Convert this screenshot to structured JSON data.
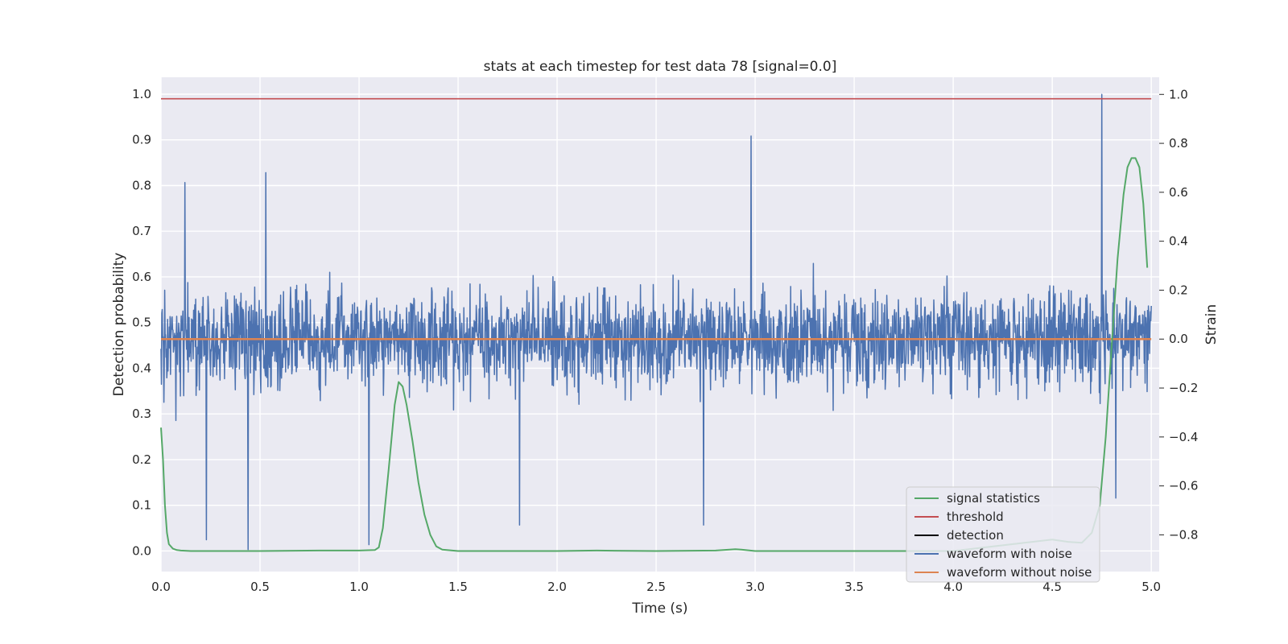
{
  "chart_data": {
    "type": "line",
    "title": "stats at each timestep for test data 78 [signal=0.0]",
    "xlabel": "Time (s)",
    "ylabel_left": "Detection probability",
    "ylabel_right": "Strain",
    "xlim": [
      0.0,
      5.04
    ],
    "ylim_left": [
      -0.045,
      1.037
    ],
    "ylim_right": [
      -0.95,
      1.07
    ],
    "xticks": [
      "0.0",
      "0.5",
      "1.0",
      "1.5",
      "2.0",
      "2.5",
      "3.0",
      "3.5",
      "4.0",
      "4.5",
      "5.0"
    ],
    "yticks_left": [
      "0.0",
      "0.1",
      "0.2",
      "0.3",
      "0.4",
      "0.5",
      "0.6",
      "0.7",
      "0.8",
      "0.9",
      "1.0"
    ],
    "yticks_right": [
      "−0.8",
      "−0.6",
      "−0.4",
      "−0.2",
      "0.0",
      "0.2",
      "0.4",
      "0.6",
      "0.8",
      "1.0"
    ],
    "grid": true,
    "legend_position": "lower-right",
    "colors": {
      "background": "#eaeaf2",
      "grid": "#ffffff",
      "signal_statistics": "#55a868",
      "threshold": "#c44e52",
      "detection": "#000000",
      "waveform_with_noise": "#4c72b0",
      "waveform_without_noise": "#dd8452"
    },
    "series": [
      {
        "name": "signal statistics",
        "axis": "left",
        "x": [
          0.0,
          0.01,
          0.02,
          0.03,
          0.04,
          0.06,
          0.08,
          0.1,
          0.15,
          0.2,
          0.5,
          0.8,
          1.0,
          1.08,
          1.1,
          1.12,
          1.15,
          1.18,
          1.2,
          1.22,
          1.24,
          1.27,
          1.3,
          1.33,
          1.36,
          1.39,
          1.42,
          1.5,
          2.0,
          2.2,
          2.5,
          2.8,
          2.87,
          2.9,
          2.93,
          3.0,
          3.5,
          4.0,
          4.4,
          4.5,
          4.58,
          4.65,
          4.7,
          4.74,
          4.77,
          4.8,
          4.83,
          4.86,
          4.88,
          4.9,
          4.92,
          4.94,
          4.96,
          4.98
        ],
        "y": [
          0.27,
          0.2,
          0.1,
          0.04,
          0.015,
          0.005,
          0.002,
          0.001,
          0.0,
          0.0,
          0.0,
          0.001,
          0.001,
          0.002,
          0.008,
          0.05,
          0.18,
          0.32,
          0.37,
          0.36,
          0.32,
          0.24,
          0.15,
          0.08,
          0.035,
          0.01,
          0.003,
          0.0,
          0.0,
          0.001,
          0.0,
          0.001,
          0.003,
          0.004,
          0.003,
          0.0,
          0.0,
          0.0,
          0.02,
          0.025,
          0.02,
          0.018,
          0.04,
          0.1,
          0.25,
          0.45,
          0.64,
          0.78,
          0.84,
          0.86,
          0.86,
          0.84,
          0.76,
          0.62
        ]
      },
      {
        "name": "threshold",
        "axis": "left",
        "x": [
          0.0,
          5.0
        ],
        "y": [
          0.99,
          0.99
        ]
      },
      {
        "name": "detection",
        "axis": "left",
        "x": [],
        "y": []
      },
      {
        "name": "waveform with noise",
        "axis": "right",
        "x_range": [
          0.0,
          5.0
        ],
        "envelope_typical": [
          -0.3,
          0.35
        ],
        "peaks": [
          {
            "x": 0.12,
            "y": 0.64
          },
          {
            "x": 0.23,
            "y": -0.82
          },
          {
            "x": 0.44,
            "y": -0.86
          },
          {
            "x": 0.53,
            "y": 0.68
          },
          {
            "x": 1.05,
            "y": -0.84
          },
          {
            "x": 1.81,
            "y": -0.76
          },
          {
            "x": 2.74,
            "y": -0.76
          },
          {
            "x": 2.98,
            "y": 0.83
          },
          {
            "x": 4.75,
            "y": 1.0
          },
          {
            "x": 4.82,
            "y": -0.65
          }
        ]
      },
      {
        "name": "waveform without noise",
        "axis": "right",
        "x": [
          0.0,
          5.0
        ],
        "y": [
          0.0,
          0.0
        ]
      }
    ]
  }
}
